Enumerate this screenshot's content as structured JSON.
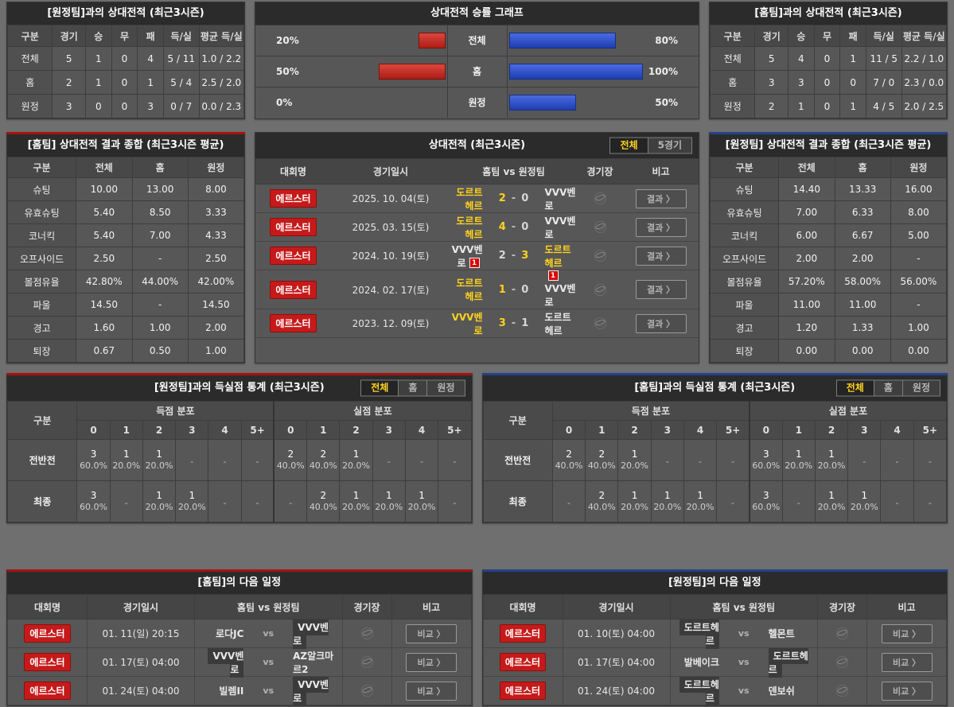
{
  "colors": {
    "page_bg": "#6f6f6f",
    "panel_bg": "#575757",
    "title_bg": "#2b2b2b",
    "accent_red": "#a81212",
    "accent_blue": "#24418c",
    "bar_red": "#c0271e",
    "bar_blue": "#2b4ed0",
    "highlight_yellow": "#ffd21e",
    "league_badge_red": "#c61a1a"
  },
  "h2h_vs_away": {
    "title": "[원정팀]과의 상대전적 (최근3시즌)",
    "headers": [
      "구분",
      "경기",
      "승",
      "무",
      "패",
      "득/실",
      "평균 득/실"
    ],
    "rows": [
      [
        "전체",
        "5",
        "1",
        "0",
        "4",
        "5 / 11",
        "1.0 / 2.2"
      ],
      [
        "홈",
        "2",
        "1",
        "0",
        "1",
        "5 / 4",
        "2.5 / 2.0"
      ],
      [
        "원정",
        "3",
        "0",
        "0",
        "3",
        "0 / 7",
        "0.0 / 2.3"
      ]
    ]
  },
  "chart_data": {
    "type": "bar",
    "title": "상대전적 승률 그래프",
    "categories": [
      "전체",
      "홈",
      "원정"
    ],
    "series": [
      {
        "name": "away-team-win-rate",
        "color": "#c0271e",
        "side": "left",
        "values": [
          20,
          50,
          0
        ]
      },
      {
        "name": "home-team-win-rate",
        "color": "#2b4ed0",
        "side": "right",
        "values": [
          80,
          100,
          50
        ]
      }
    ],
    "value_suffix": "%",
    "xlim": [
      0,
      100
    ]
  },
  "h2h_vs_home": {
    "title": "[홈팀]과의 상대전적 (최근3시즌)",
    "headers": [
      "구분",
      "경기",
      "승",
      "무",
      "패",
      "득/실",
      "평균 득/실"
    ],
    "rows": [
      [
        "전체",
        "5",
        "4",
        "0",
        "1",
        "11 / 5",
        "2.2 / 1.0"
      ],
      [
        "홈",
        "3",
        "3",
        "0",
        "0",
        "7 / 0",
        "2.3 / 0.0"
      ],
      [
        "원정",
        "2",
        "1",
        "0",
        "1",
        "4 / 5",
        "2.0 / 2.5"
      ]
    ]
  },
  "summary_home": {
    "title": "[홈팀] 상대전적 결과 종합 (최근3시즌 평균)",
    "headers": [
      "구분",
      "전체",
      "홈",
      "원정"
    ],
    "rows": [
      [
        "슈팅",
        "10.00",
        "13.00",
        "8.00"
      ],
      [
        "유효슈팅",
        "5.40",
        "8.50",
        "3.33"
      ],
      [
        "코너킥",
        "5.40",
        "7.00",
        "4.33"
      ],
      [
        "오프사이드",
        "2.50",
        "-",
        "2.50"
      ],
      [
        "볼점유율",
        "42.80%",
        "44.00%",
        "42.00%"
      ],
      [
        "파울",
        "14.50",
        "-",
        "14.50"
      ],
      [
        "경고",
        "1.60",
        "1.00",
        "2.00"
      ],
      [
        "퇴장",
        "0.67",
        "0.50",
        "1.00"
      ]
    ]
  },
  "summary_away": {
    "title": "[원정팀] 상대전적 결과 종합 (최근3시즌 평균)",
    "headers": [
      "구분",
      "전체",
      "홈",
      "원정"
    ],
    "rows": [
      [
        "슈팅",
        "14.40",
        "13.33",
        "16.00"
      ],
      [
        "유효슈팅",
        "7.00",
        "6.33",
        "8.00"
      ],
      [
        "코너킥",
        "6.00",
        "6.67",
        "5.00"
      ],
      [
        "오프사이드",
        "2.00",
        "2.00",
        "-"
      ],
      [
        "볼점유율",
        "57.20%",
        "58.00%",
        "56.00%"
      ],
      [
        "파울",
        "11.00",
        "11.00",
        "-"
      ],
      [
        "경고",
        "1.20",
        "1.33",
        "1.00"
      ],
      [
        "퇴장",
        "0.00",
        "0.00",
        "0.00"
      ]
    ]
  },
  "h2h_matches": {
    "title": "상대전적 (최근3시즌)",
    "tabs": [
      "전체",
      "5경기"
    ],
    "active_tab": 0,
    "headers": [
      "대회명",
      "경기일시",
      "홈팀  vs  원정팀",
      "경기장",
      "비고"
    ],
    "action_label": "결과 〉",
    "venue_icon": "globe-icon",
    "rows": [
      {
        "league": "에르스터",
        "date": "2025. 10. 04(토)",
        "home": "도르트헤르",
        "away": "VVV벤로",
        "hs": "2",
        "as": "0",
        "winner": "home",
        "home_red": "",
        "away_red": ""
      },
      {
        "league": "에르스터",
        "date": "2025. 03. 15(토)",
        "home": "도르트헤르",
        "away": "VVV벤로",
        "hs": "4",
        "as": "0",
        "winner": "home",
        "home_red": "",
        "away_red": ""
      },
      {
        "league": "에르스터",
        "date": "2024. 10. 19(토)",
        "home": "VVV벤로",
        "away": "도르트헤르",
        "hs": "2",
        "as": "3",
        "winner": "away",
        "home_red": "1",
        "away_red": ""
      },
      {
        "league": "에르스터",
        "date": "2024. 02. 17(토)",
        "home": "도르트헤르",
        "away": "VVV벤로",
        "hs": "1",
        "as": "0",
        "winner": "home",
        "home_red": "",
        "away_red": "1"
      },
      {
        "league": "에르스터",
        "date": "2023. 12. 09(토)",
        "home": "VVV벤로",
        "away": "도르트헤르",
        "hs": "3",
        "as": "1",
        "winner": "home",
        "home_red": "",
        "away_red": ""
      }
    ]
  },
  "goals_vs_away": {
    "title": "[원정팀]과의 득실점 통계 (최근3시즌)",
    "tabs": [
      "전체",
      "홈",
      "원정"
    ],
    "active_tab": 0,
    "row_header": "구분",
    "group_headers": [
      "득점 분포",
      "실점 분포"
    ],
    "bins": [
      "0",
      "1",
      "2",
      "3",
      "4",
      "5+"
    ],
    "rows": [
      {
        "label": "전반전",
        "scored": [
          [
            "3",
            "60.0%"
          ],
          [
            "1",
            "20.0%"
          ],
          [
            "1",
            "20.0%"
          ],
          "-",
          "-",
          "-"
        ],
        "conceded": [
          [
            "2",
            "40.0%"
          ],
          [
            "2",
            "40.0%"
          ],
          [
            "1",
            "20.0%"
          ],
          "-",
          "-",
          "-"
        ]
      },
      {
        "label": "최종",
        "scored": [
          [
            "3",
            "60.0%"
          ],
          "-",
          [
            "1",
            "20.0%"
          ],
          [
            "1",
            "20.0%"
          ],
          "-",
          "-"
        ],
        "conceded": [
          "-",
          [
            "2",
            "40.0%"
          ],
          [
            "1",
            "20.0%"
          ],
          [
            "1",
            "20.0%"
          ],
          [
            "1",
            "20.0%"
          ],
          "-"
        ]
      }
    ]
  },
  "goals_vs_home": {
    "title": "[홈팀]과의 득실점 통계 (최근3시즌)",
    "tabs": [
      "전체",
      "홈",
      "원정"
    ],
    "active_tab": 0,
    "row_header": "구분",
    "group_headers": [
      "득점 분포",
      "실점 분포"
    ],
    "bins": [
      "0",
      "1",
      "2",
      "3",
      "4",
      "5+"
    ],
    "rows": [
      {
        "label": "전반전",
        "scored": [
          [
            "2",
            "40.0%"
          ],
          [
            "2",
            "40.0%"
          ],
          [
            "1",
            "20.0%"
          ],
          "-",
          "-",
          "-"
        ],
        "conceded": [
          [
            "3",
            "60.0%"
          ],
          [
            "1",
            "20.0%"
          ],
          [
            "1",
            "20.0%"
          ],
          "-",
          "-",
          "-"
        ]
      },
      {
        "label": "최종",
        "scored": [
          "-",
          [
            "2",
            "40.0%"
          ],
          [
            "1",
            "20.0%"
          ],
          [
            "1",
            "20.0%"
          ],
          [
            "1",
            "20.0%"
          ],
          "-"
        ],
        "conceded": [
          [
            "3",
            "60.0%"
          ],
          "-",
          [
            "1",
            "20.0%"
          ],
          [
            "1",
            "20.0%"
          ],
          "-",
          "-"
        ]
      }
    ]
  },
  "schedule_home": {
    "title": "[홈팀]의 다음 일정",
    "headers": [
      "대회명",
      "경기일시",
      "홈팀  vs  원정팀",
      "경기장",
      "비고"
    ],
    "vs_label": "vs",
    "action_label": "비교 〉",
    "venue_icon": "globe-icon",
    "rows": [
      {
        "league": "에르스터",
        "date": "01. 11(일) 20:15",
        "home": "로다JC",
        "away": "VVV벤로",
        "focus": "away"
      },
      {
        "league": "에르스터",
        "date": "01. 17(토) 04:00",
        "home": "VVV벤로",
        "away": "AZ알크마르2",
        "focus": "home"
      },
      {
        "league": "에르스터",
        "date": "01. 24(토) 04:00",
        "home": "빌렘II",
        "away": "VVV벤로",
        "focus": "away"
      }
    ]
  },
  "schedule_away": {
    "title": "[원정팀]의 다음 일정",
    "headers": [
      "대회명",
      "경기일시",
      "홈팀  vs  원정팀",
      "경기장",
      "비고"
    ],
    "vs_label": "vs",
    "action_label": "비교 〉",
    "venue_icon": "globe-icon",
    "rows": [
      {
        "league": "에르스터",
        "date": "01. 10(토) 04:00",
        "home": "도르트헤르",
        "away": "헬몬트",
        "focus": "home"
      },
      {
        "league": "에르스터",
        "date": "01. 17(토) 04:00",
        "home": "발베이크",
        "away": "도르트헤르",
        "focus": "away"
      },
      {
        "league": "에르스터",
        "date": "01. 24(토) 04:00",
        "home": "도르트헤르",
        "away": "덴보쉬",
        "focus": "home"
      }
    ]
  }
}
